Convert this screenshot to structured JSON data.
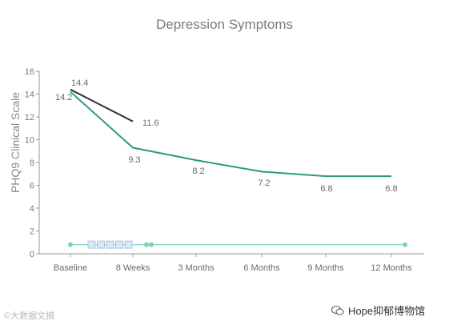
{
  "chart_data": {
    "type": "line",
    "title": "Depression Symptoms",
    "xlabel": "",
    "ylabel": "PHQ9 Clinical Scale",
    "categories": [
      "Baseline",
      "8 Weeks",
      "3 Months",
      "6 Months",
      "9 Months",
      "12 Months"
    ],
    "ylim": [
      0,
      16
    ],
    "yticks": [
      0,
      2,
      4,
      6,
      8,
      10,
      12,
      14,
      16
    ],
    "grid": false,
    "series": [
      {
        "color": "#34303f",
        "points": [
          {
            "x": "Baseline",
            "y": 14.4
          },
          {
            "x": "8 Weeks",
            "y": 11.6
          }
        ],
        "labels": [
          "14.4",
          "11.6"
        ]
      },
      {
        "color": "#2a9a82",
        "points": [
          {
            "x": "Baseline",
            "y": 14.2
          },
          {
            "x": "8 Weeks",
            "y": 9.3
          },
          {
            "x": "3 Months",
            "y": 8.2
          },
          {
            "x": "6 Months",
            "y": 7.2
          },
          {
            "x": "9 Months",
            "y": 6.8
          },
          {
            "x": "12 Months",
            "y": 6.8
          }
        ],
        "labels": [
          "14.2",
          "9.3",
          "8.2",
          "7.2",
          "6.8",
          "6.8"
        ]
      }
    ],
    "timeline": {
      "color": "#7fd6c3",
      "dot_color": "#7fcfc0",
      "box_color": "#d6e8f5",
      "box_border": "#9fbfd6",
      "value": 0.8,
      "boxes": 5
    }
  },
  "watermarks": {
    "left": "©大数据文摘",
    "right": "Hope抑郁博物馆",
    "right_icon": "wechat-icon"
  }
}
